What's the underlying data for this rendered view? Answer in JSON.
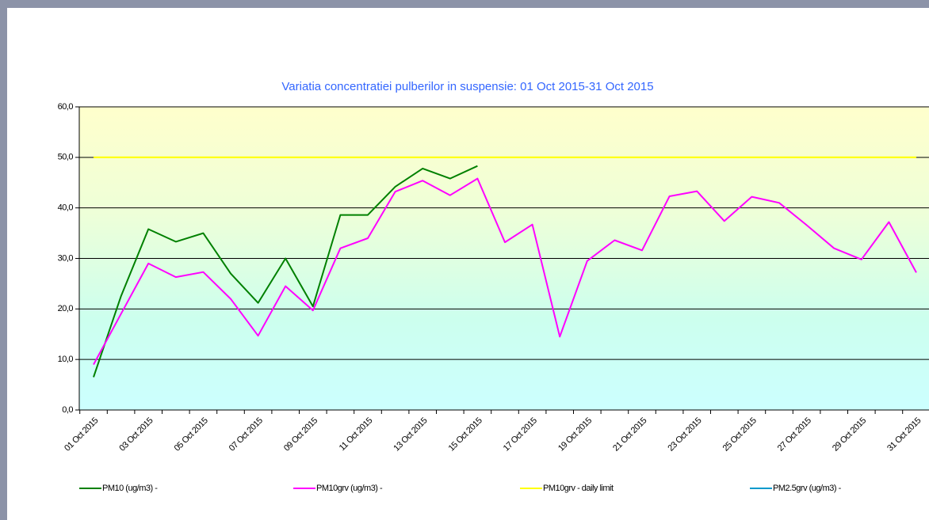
{
  "chart_data": {
    "type": "line",
    "title": "Variatia concentratiei pulberilor in suspensie: 01 Oct 2015-31 Oct 2015",
    "categories": [
      "01 Oct 2015",
      null,
      "03 Oct 2015",
      null,
      "05 Oct 2015",
      null,
      "07 Oct 2015",
      null,
      "09 Oct 2015",
      null,
      "11 Oct 2015",
      null,
      "13 Oct 2015",
      null,
      "15 Oct 2015",
      null,
      "17 Oct 2015",
      null,
      "19 Oct 2015",
      null,
      "21 Oct 2015",
      null,
      "23 Oct 2015",
      null,
      "25 Oct 2015",
      null,
      "27 Oct 2015",
      null,
      "29 Oct 2015",
      null,
      "31 Oct 2015"
    ],
    "series": [
      {
        "name": "PM10 (ug/m3)  -",
        "color": "#008000",
        "values": [
          6.5,
          22.5,
          35.8,
          33.3,
          35.0,
          27.0,
          21.2,
          30.0,
          20.5,
          38.6,
          38.6,
          44.2,
          47.8,
          45.8,
          48.3,
          null,
          null,
          null,
          null,
          null,
          null,
          null,
          null,
          null,
          null,
          null,
          null,
          null,
          null,
          null,
          null
        ]
      },
      {
        "name": "PM10grv (ug/m3)  -",
        "color": "#ff00ff",
        "values": [
          9.0,
          19.0,
          29.0,
          26.3,
          27.3,
          22.0,
          14.7,
          24.5,
          19.7,
          32.0,
          34.0,
          43.2,
          45.4,
          42.5,
          45.8,
          33.2,
          36.7,
          14.5,
          29.5,
          33.6,
          31.6,
          42.3,
          43.3,
          37.4,
          42.2,
          41.0,
          36.6,
          32.0,
          29.8,
          37.2,
          27.2
        ]
      },
      {
        "name": "PM10grv - daily limit",
        "color": "#ffff00",
        "values": [
          50,
          50,
          50,
          50,
          50,
          50,
          50,
          50,
          50,
          50,
          50,
          50,
          50,
          50,
          50,
          50,
          50,
          50,
          50,
          50,
          50,
          50,
          50,
          50,
          50,
          50,
          50,
          50,
          50,
          50,
          50
        ]
      },
      {
        "name": "PM2.5grv (ug/m3)  -",
        "color": "#0099cc",
        "values": [
          null,
          null,
          null,
          null,
          null,
          null,
          null,
          null,
          null,
          null,
          null,
          null,
          null,
          null,
          null,
          null,
          null,
          null,
          null,
          null,
          null,
          null,
          null,
          null,
          null,
          null,
          null,
          null,
          null,
          null,
          null
        ]
      }
    ],
    "ylim": [
      0,
      60
    ],
    "yticks": [
      {
        "value": 0,
        "label": "0,0"
      },
      {
        "value": 10,
        "label": "10,0"
      },
      {
        "value": 20,
        "label": "20,0"
      },
      {
        "value": 30,
        "label": "30,0"
      },
      {
        "value": 40,
        "label": "40,0"
      },
      {
        "value": 50,
        "label": "50,0"
      },
      {
        "value": 60,
        "label": "60,0"
      }
    ],
    "grid": true
  }
}
